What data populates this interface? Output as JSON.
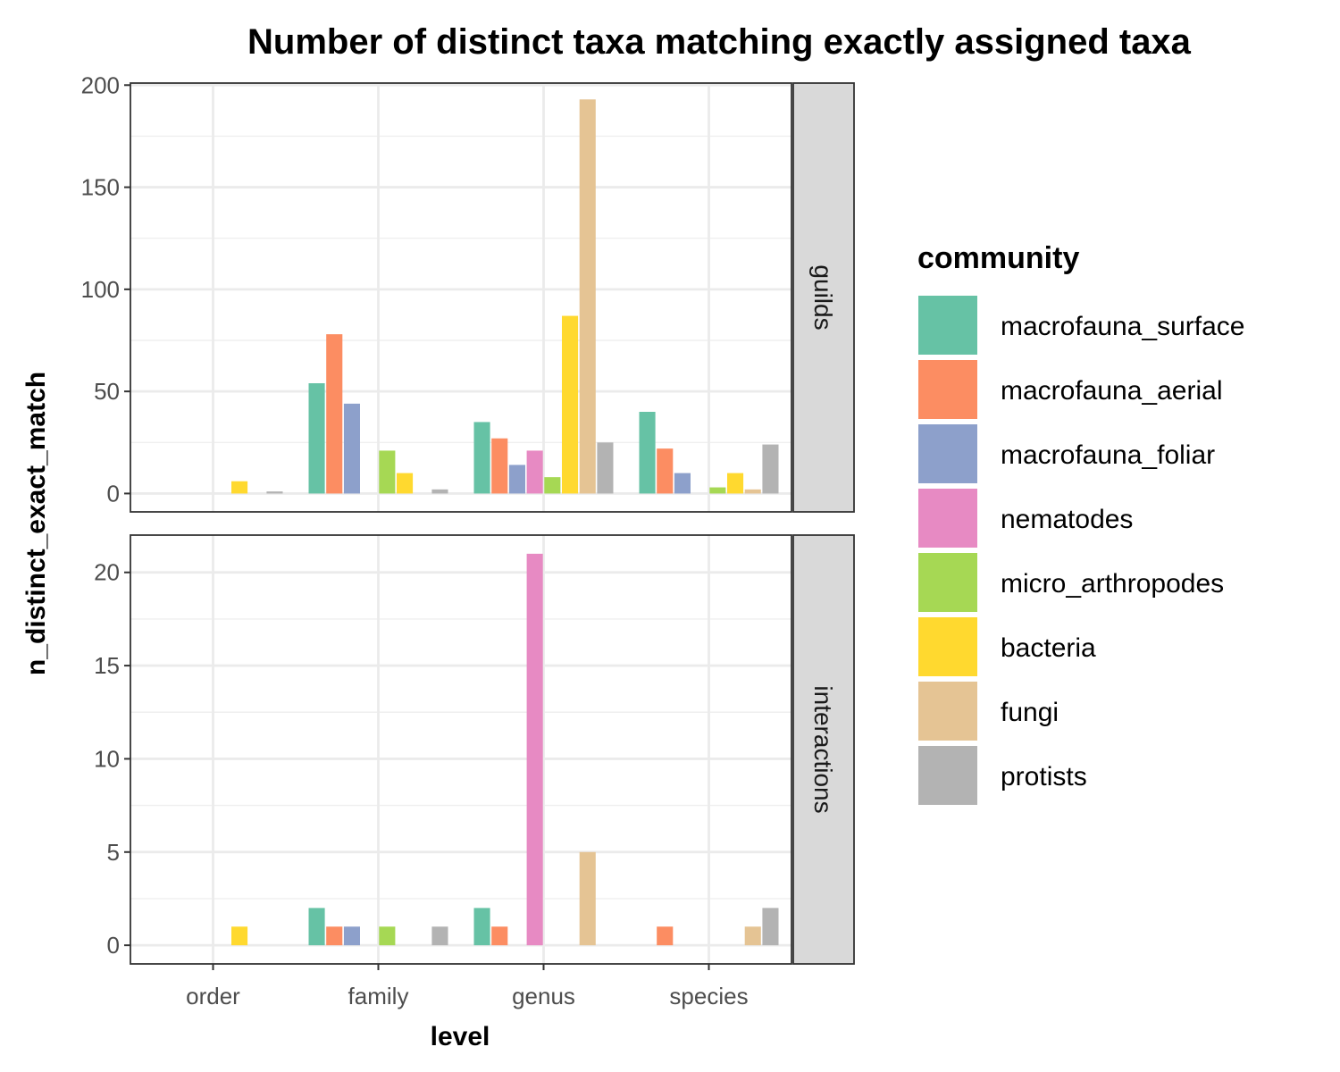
{
  "chart_data": {
    "type": "bar",
    "title": "Number of distinct taxa matching exactly assigned taxa",
    "xlabel": "level",
    "ylabel": "n_distinct_exact_match",
    "categories": [
      "order",
      "family",
      "genus",
      "species"
    ],
    "legend": {
      "title": "community",
      "placement": "right",
      "entries": [
        {
          "name": "macrofauna_surface",
          "color": "#66C2A5"
        },
        {
          "name": "macrofauna_aerial",
          "color": "#FC8D62"
        },
        {
          "name": "macrofauna_foliar",
          "color": "#8DA0CB"
        },
        {
          "name": "nematodes",
          "color": "#E78AC3"
        },
        {
          "name": "micro_arthropodes",
          "color": "#A6D854"
        },
        {
          "name": "bacteria",
          "color": "#FFD92F"
        },
        {
          "name": "fungi",
          "color": "#E5C494"
        },
        {
          "name": "protists",
          "color": "#B3B3B3"
        }
      ]
    },
    "grid": true,
    "panels": [
      {
        "label": "guilds",
        "ylim": [
          -9,
          201
        ],
        "yticks": [
          0,
          50,
          100,
          150,
          200
        ],
        "series": [
          {
            "name": "macrofauna_surface",
            "values": [
              null,
              54,
              35,
              40
            ]
          },
          {
            "name": "macrofauna_aerial",
            "values": [
              null,
              78,
              27,
              22
            ]
          },
          {
            "name": "macrofauna_foliar",
            "values": [
              null,
              44,
              14,
              10
            ]
          },
          {
            "name": "nematodes",
            "values": [
              null,
              null,
              21,
              null
            ]
          },
          {
            "name": "micro_arthropodes",
            "values": [
              null,
              21,
              8,
              3
            ]
          },
          {
            "name": "bacteria",
            "values": [
              6,
              10,
              87,
              10
            ]
          },
          {
            "name": "fungi",
            "values": [
              null,
              null,
              193,
              2
            ]
          },
          {
            "name": "protists",
            "values": [
              1,
              2,
              25,
              24
            ]
          }
        ]
      },
      {
        "label": "interactions",
        "ylim": [
          -1,
          22
        ],
        "yticks": [
          0,
          5,
          10,
          15,
          20
        ],
        "series": [
          {
            "name": "macrofauna_surface",
            "values": [
              null,
              2,
              2,
              null
            ]
          },
          {
            "name": "macrofauna_aerial",
            "values": [
              null,
              1,
              1,
              1
            ]
          },
          {
            "name": "macrofauna_foliar",
            "values": [
              null,
              1,
              null,
              null
            ]
          },
          {
            "name": "nematodes",
            "values": [
              null,
              null,
              21,
              null
            ]
          },
          {
            "name": "micro_arthropodes",
            "values": [
              null,
              1,
              null,
              null
            ]
          },
          {
            "name": "bacteria",
            "values": [
              1,
              null,
              null,
              null
            ]
          },
          {
            "name": "fungi",
            "values": [
              null,
              null,
              5,
              1
            ]
          },
          {
            "name": "protists",
            "values": [
              null,
              1,
              null,
              2
            ]
          }
        ]
      }
    ]
  }
}
